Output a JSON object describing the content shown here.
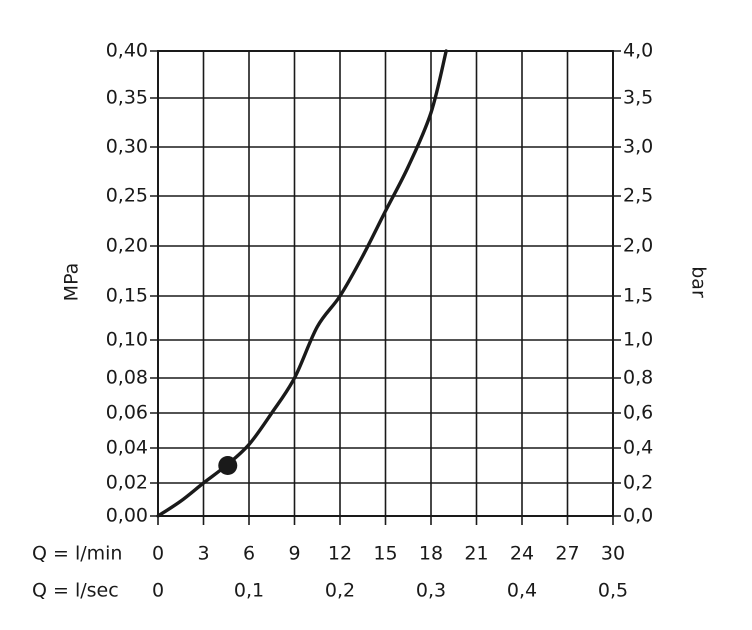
{
  "chart_data": {
    "type": "line",
    "x_axis": {
      "label": "Q = l/min",
      "range": [
        0,
        30
      ],
      "ticks": [
        0,
        3,
        6,
        9,
        12,
        15,
        18,
        21,
        24,
        27,
        30
      ],
      "tick_labels": [
        "0",
        "3",
        "6",
        "9",
        "12",
        "15",
        "18",
        "21",
        "24",
        "27",
        "30"
      ]
    },
    "x_axis_secondary": {
      "label": "Q = l/sec",
      "ticks": [
        0,
        0.1,
        0.2,
        0.3,
        0.4,
        0.5
      ],
      "tick_labels": [
        "0",
        "0,1",
        "0,2",
        "0,3",
        "0,4",
        "0,5"
      ]
    },
    "y_axis_left": {
      "label": "MPa",
      "ticks": [
        0,
        0.02,
        0.04,
        0.06,
        0.08,
        0.1,
        0.15,
        0.2,
        0.25,
        0.3,
        0.35,
        0.4
      ],
      "tick_labels": [
        "0,00",
        "0,02",
        "0,04",
        "0,06",
        "0,08",
        "0,10",
        "0,15",
        "0,20",
        "0,25",
        "0,30",
        "0,35",
        "0,40"
      ]
    },
    "y_axis_right": {
      "label": "bar",
      "tick_labels": [
        "0,0",
        "0,2",
        "0,4",
        "0,6",
        "0,8",
        "1,0",
        "1,5",
        "2,0",
        "2,5",
        "3,0",
        "3,5",
        "4,0"
      ]
    },
    "grid": true,
    "series": [
      {
        "x": [
          0,
          1.5,
          3,
          4.5,
          6,
          7.5,
          9,
          10.5,
          12,
          13.5,
          15,
          16.5,
          18,
          19
        ],
        "y": [
          0,
          0.009,
          0.02,
          0.03,
          0.042,
          0.06,
          0.08,
          0.115,
          0.15,
          0.19,
          0.235,
          0.28,
          0.335,
          0.4
        ]
      }
    ],
    "marker": {
      "x": 4.6,
      "y": 0.03
    }
  }
}
